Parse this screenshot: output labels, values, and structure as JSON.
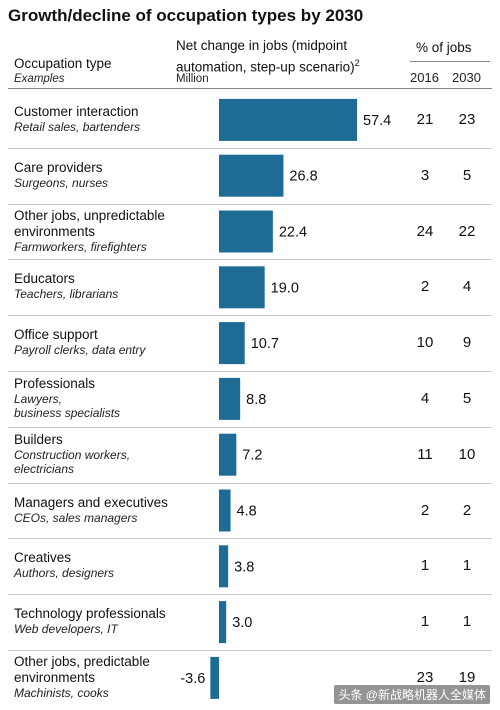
{
  "title": "Growth/decline of occupation types by 2030",
  "headers": {
    "occupation": "Occupation type",
    "examples": "Examples",
    "net_change_line1": "Net change in jobs (midpoint",
    "net_change_line2": "automation, step-up scenario)",
    "net_change_sup": "2",
    "unit": "Million",
    "pct": "% of jobs",
    "year1": "2016",
    "year2": "2030"
  },
  "watermark": "头条 @新战略机器人全媒体",
  "colors": {
    "bar": "#1e6b96"
  },
  "rows": [
    {
      "name": [
        "Customer interaction"
      ],
      "examples": [
        "Retail sales, bartenders"
      ],
      "value": "57.4",
      "p2016": "21",
      "p2030": "23"
    },
    {
      "name": [
        "Care providers"
      ],
      "examples": [
        "Surgeons, nurses"
      ],
      "value": "26.8",
      "p2016": "3",
      "p2030": "5"
    },
    {
      "name": [
        "Other jobs, unpredictable",
        "environments"
      ],
      "examples": [
        "Farmworkers, firefighters"
      ],
      "value": "22.4",
      "p2016": "24",
      "p2030": "22"
    },
    {
      "name": [
        "Educators"
      ],
      "examples": [
        "Teachers, librarians"
      ],
      "value": "19.0",
      "p2016": "2",
      "p2030": "4"
    },
    {
      "name": [
        "Office support"
      ],
      "examples": [
        "Payroll clerks, data entry"
      ],
      "value": "10.7",
      "p2016": "10",
      "p2030": "9"
    },
    {
      "name": [
        "Professionals"
      ],
      "examples": [
        "Lawyers,",
        "business specialists"
      ],
      "value": "8.8",
      "p2016": "4",
      "p2030": "5"
    },
    {
      "name": [
        "Builders"
      ],
      "examples": [
        "Construction workers,",
        "electricians"
      ],
      "value": "7.2",
      "p2016": "11",
      "p2030": "10"
    },
    {
      "name": [
        "Managers and executives"
      ],
      "examples": [
        "CEOs, sales managers"
      ],
      "value": "4.8",
      "p2016": "2",
      "p2030": "2"
    },
    {
      "name": [
        "Creatives"
      ],
      "examples": [
        "Authors, designers"
      ],
      "value": "3.8",
      "p2016": "1",
      "p2030": "1"
    },
    {
      "name": [
        "Technology professionals"
      ],
      "examples": [
        "Web developers, IT"
      ],
      "value": "3.0",
      "p2016": "1",
      "p2030": "1"
    },
    {
      "name": [
        "Other jobs, predictable",
        "environments"
      ],
      "examples": [
        "Machinists, cooks"
      ],
      "value": "-3.6",
      "p2016": "23",
      "p2030": "19"
    }
  ],
  "chart_data": {
    "type": "bar",
    "orientation": "horizontal",
    "title": "Growth/decline of occupation types by 2030",
    "xlabel": "Net change in jobs (midpoint automation, step-up scenario), Million",
    "categories": [
      "Customer interaction",
      "Care providers",
      "Other jobs, unpredictable environments",
      "Educators",
      "Office support",
      "Professionals",
      "Builders",
      "Managers and executives",
      "Creatives",
      "Technology professionals",
      "Other jobs, predictable environments"
    ],
    "values": [
      57.4,
      26.8,
      22.4,
      19.0,
      10.7,
      8.8,
      7.2,
      4.8,
      3.8,
      3.0,
      -3.6
    ],
    "xlim": [
      -3.6,
      57.4
    ],
    "grid": false,
    "legend": "none"
  }
}
